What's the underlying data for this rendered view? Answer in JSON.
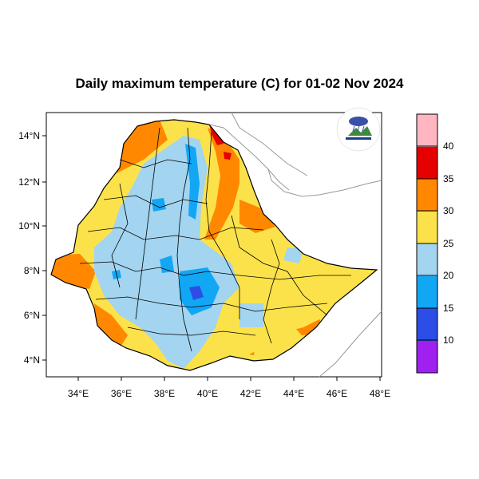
{
  "title": "Daily maximum temperature (C) for 01-02 Nov 2024",
  "x_ticks": [
    "34°E",
    "36°E",
    "38°E",
    "40°E",
    "42°E",
    "44°E",
    "46°E",
    "48°E"
  ],
  "y_ticks": [
    "14°N",
    "12°N",
    "10°N",
    "8°N",
    "6°N",
    "4°N"
  ],
  "colorbar": {
    "labels": [
      "10",
      "15",
      "20",
      "25",
      "30",
      "35",
      "40"
    ],
    "colors": [
      "#a020f0",
      "#2d4ee6",
      "#12a7f5",
      "#a3d4f0",
      "#fce24a",
      "#ff8800",
      "#e60000",
      "#ffb6c1"
    ]
  },
  "logo": {
    "icon": "agency-logo-icon"
  },
  "map_colors": {
    "ocean_border": "#999999",
    "boundary": "#000000"
  }
}
